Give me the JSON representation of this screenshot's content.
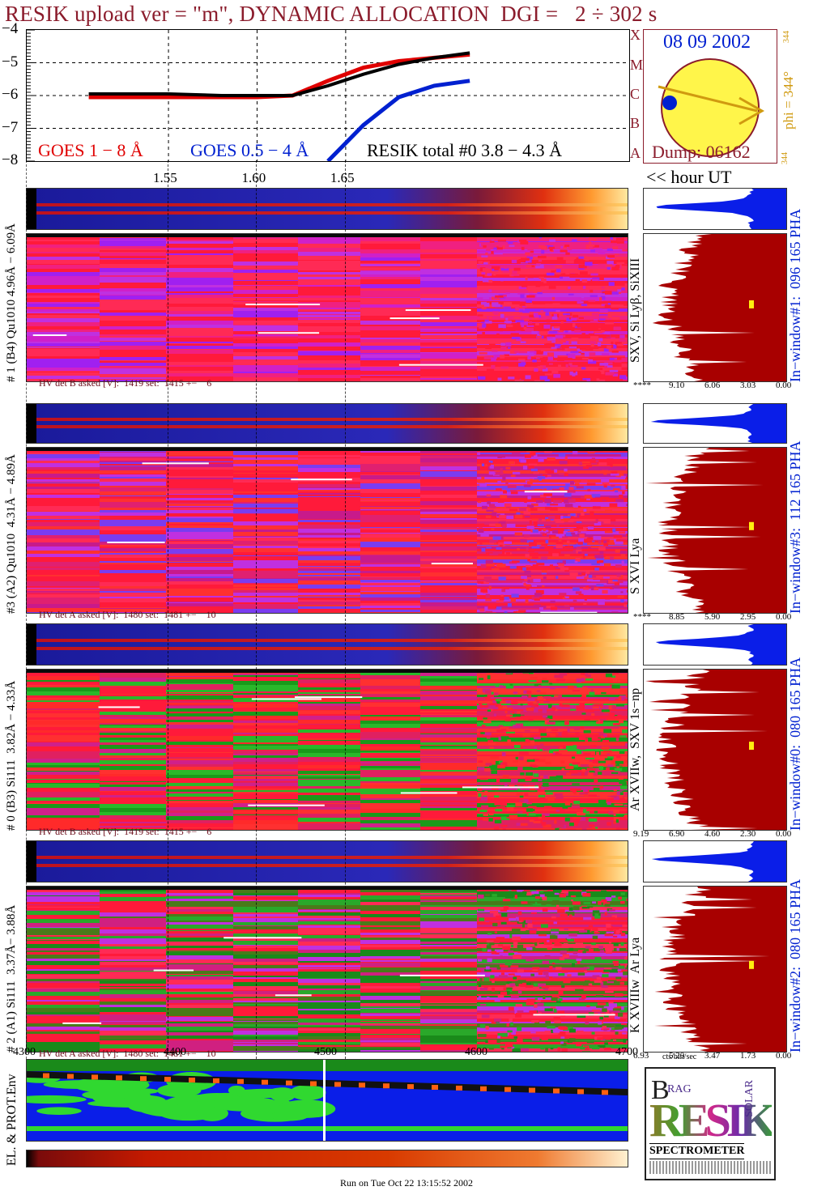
{
  "header": {
    "title": "RESIK upload ver = \"m\", DYNAMIC ALLOCATION  DGI =   2 ÷ 302 s"
  },
  "chart_data": [
    {
      "type": "line",
      "name": "goes_lightcurve",
      "x": [
        1.505,
        1.53,
        1.55,
        1.58,
        1.6,
        1.62,
        1.64,
        1.66,
        1.68,
        1.7,
        1.72
      ],
      "ylim": [
        -8,
        -4
      ],
      "yticks": [
        "−4",
        "−5",
        "−6",
        "−7",
        "−8"
      ],
      "xticks": [
        "1.55",
        "1.60",
        "1.65"
      ],
      "goes_classes": [
        "A",
        "B",
        "C",
        "M",
        "X"
      ],
      "series": [
        {
          "name": "GOES 1 − 8 Å",
          "color": "#e00000",
          "values": [
            -6.05,
            -6.05,
            -6.05,
            -6.05,
            -6.05,
            -6.0,
            -5.55,
            -5.15,
            -4.95,
            -4.85,
            -4.75
          ]
        },
        {
          "name": "GOES 0.5 − 4 Å",
          "color": "#0020d0",
          "values": [
            null,
            null,
            null,
            null,
            null,
            null,
            -8.0,
            -6.9,
            -6.05,
            -5.7,
            -5.55
          ]
        },
        {
          "name": "RESIK total #0  3.8 − 4.3 Å",
          "color": "#000000",
          "values": [
            -5.95,
            -5.95,
            -5.95,
            -6.0,
            -6.0,
            -6.0,
            -5.7,
            -5.35,
            -5.05,
            -4.85,
            -4.7
          ]
        }
      ]
    },
    {
      "type": "heatmap",
      "name": "channel_1",
      "side_label": "# 1 (B4) Qu1010 4.96Å − 6.09Å",
      "line_label": "SXV, Si Lyβ, SiXIII",
      "hist_label": "In−window#1:  096 165 PHA",
      "hv": "HV det B asked [V]:  1419 set:  1415 +−    6",
      "hist_ticks": [
        "****",
        "9.10",
        "6.06",
        "3.03",
        "0.00"
      ]
    },
    {
      "type": "heatmap",
      "name": "channel_3",
      "side_label": "#3 (A2) Qu1010  4.31Å − 4.89Å",
      "line_label": "S XVI Lya",
      "hist_label": "In−window#3:  112 165 PHA",
      "hv": "HV det A asked [V]:  1480 set:  1481 +−    10",
      "hist_ticks": [
        "****",
        "8.85",
        "5.90",
        "2.95",
        "0.00"
      ]
    },
    {
      "type": "heatmap",
      "name": "channel_0",
      "side_label": "# 0 (B3) Si111  3.82Å − 4.33Å",
      "line_label": "Ar XVIIw,  SXV 1s−np",
      "hist_label": "In−window#0:  080 165 PHA",
      "hv": "HV det B asked [V]:  1419 set:  1415 +−    6",
      "hist_ticks": [
        "9.19",
        "6.90",
        "4.60",
        "2.30",
        "0.00"
      ]
    },
    {
      "type": "heatmap",
      "name": "channel_2",
      "side_label": "# 2 (A1) Si111  3.37Å− 3.88Å",
      "line_label": "K XVIIIw  Ar Lya",
      "hist_label": "In−window#2:  080 165 PHA",
      "hv": "HV det A asked [V]:  1480 set:  1481 +−    10",
      "hist_ticks": [
        "6.93",
        "5.20",
        "3.47",
        "1.73",
        "0.00"
      ],
      "hist_xlabel": "cts/bin/sec"
    },
    {
      "type": "heatmap",
      "name": "environment",
      "side_label": "EL. & PROT.Env",
      "xticks": [
        "4300",
        "4400",
        "4500",
        "4600",
        "4700"
      ]
    }
  ],
  "sun": {
    "date": "08 09 2002",
    "dump": "Dump: 06162",
    "phi_label": "phi = 344°",
    "phi_small": "344",
    "corner_small": "344"
  },
  "hour_ut": "<< hour UT",
  "logo": {
    "b": "B",
    "rag": "RAG",
    "resik": "RESIK",
    "solar": "SOLAR",
    "spec": "SPECTROMETER"
  },
  "footer": {
    "run": "Run on Tue Oct 22 13:15:52 2002"
  },
  "colors": {
    "title": "#8b1c2c",
    "red": "#e00000",
    "blue": "#0020d0",
    "hist": "#a80000"
  }
}
